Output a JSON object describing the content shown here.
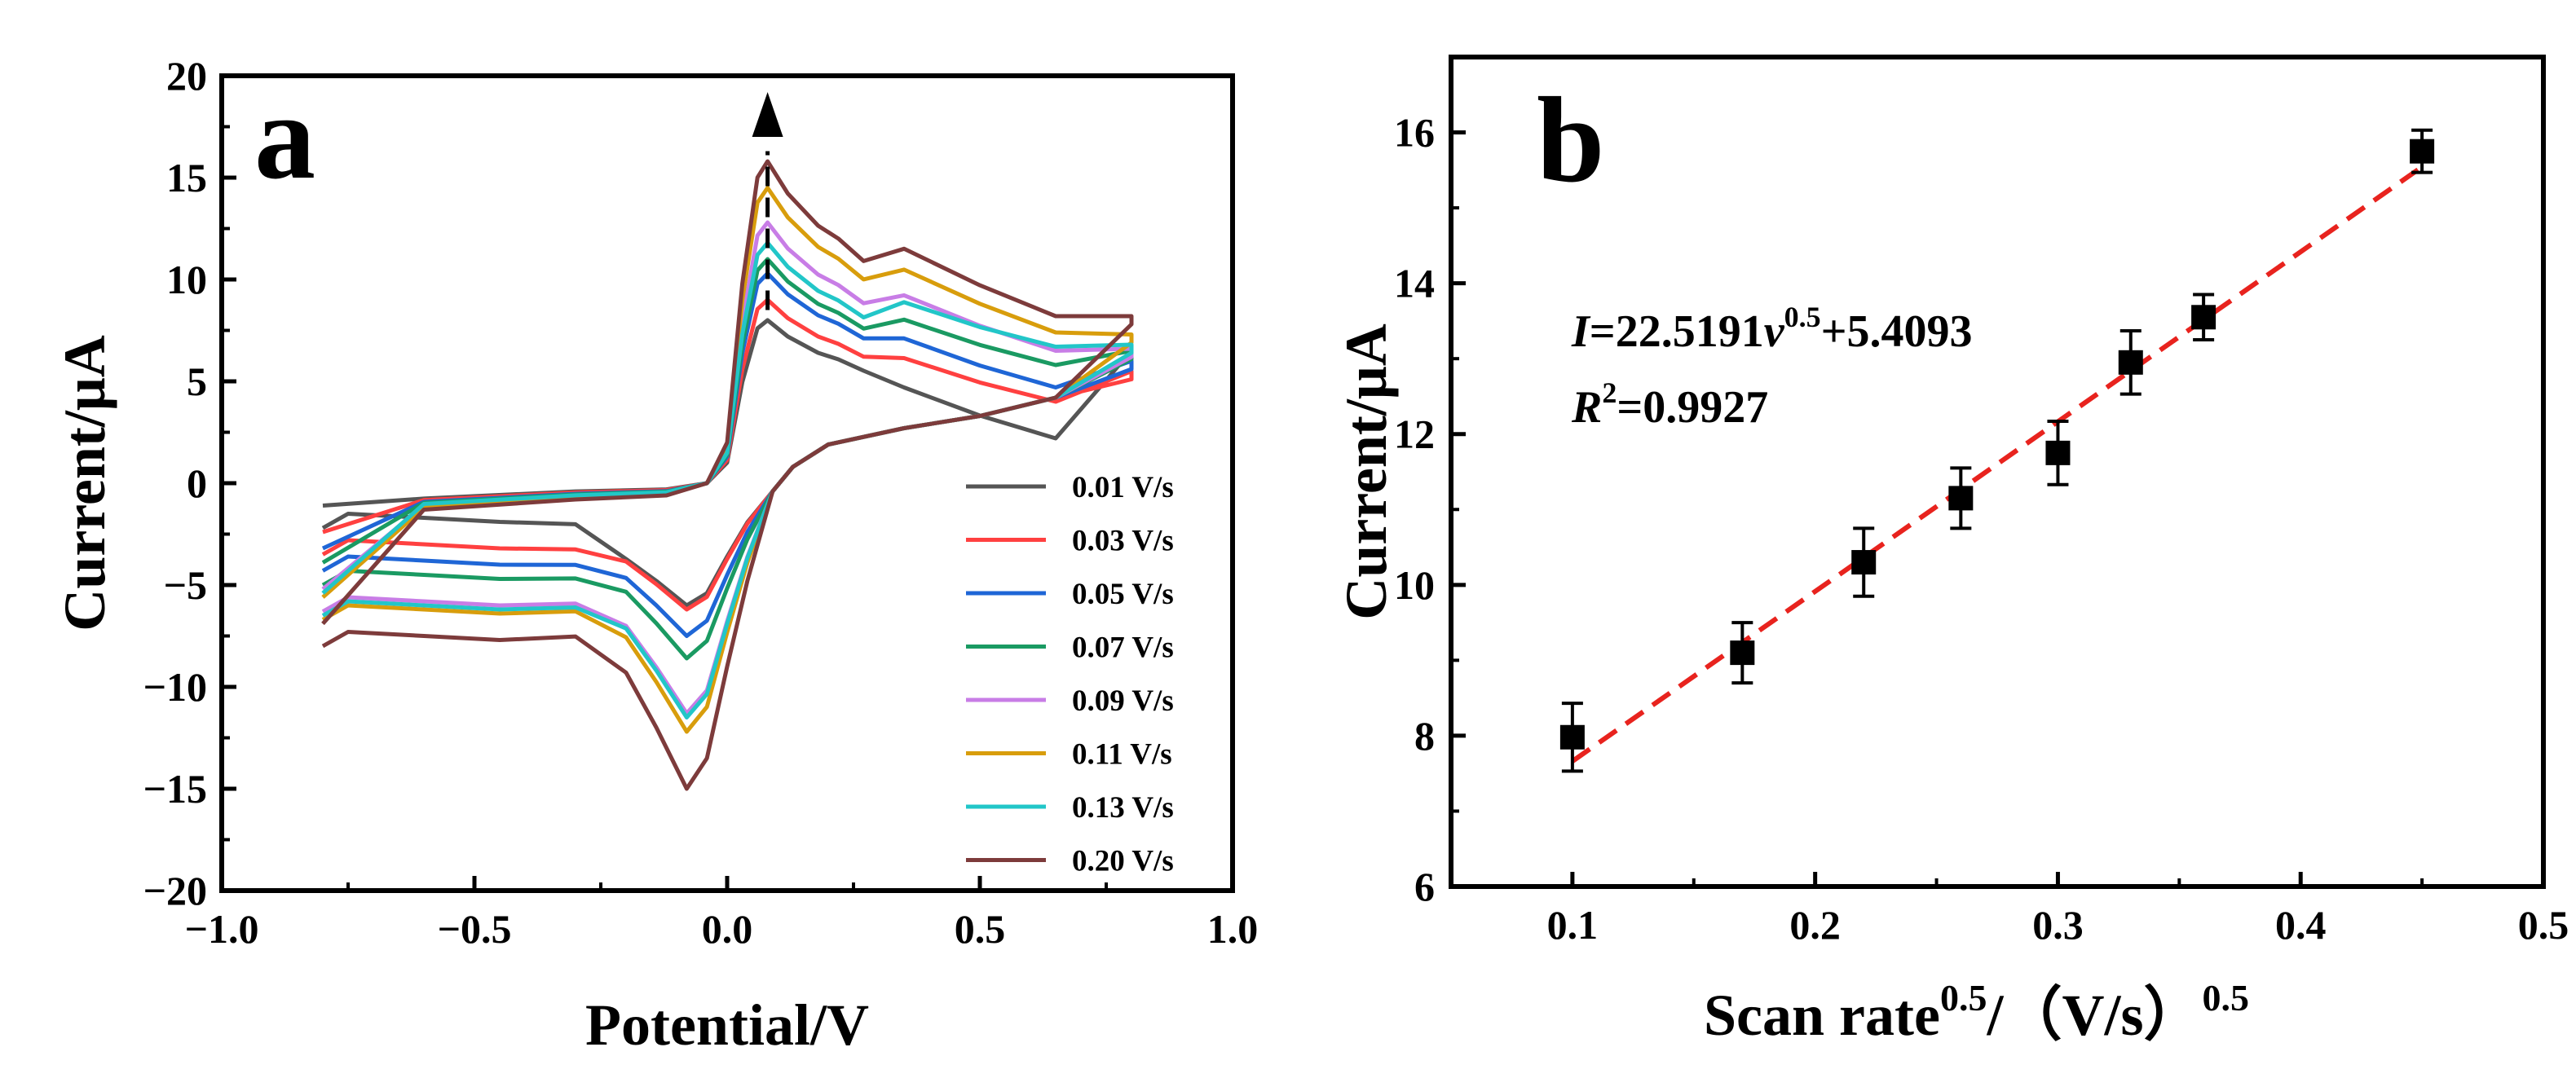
{
  "chart_data": [
    {
      "panel": "a",
      "type": "line",
      "title": "",
      "xlabel": "Potential/V",
      "ylabel": "Current/μA",
      "xlim": [
        -1.0,
        1.0
      ],
      "ylim": [
        -20,
        20
      ],
      "x_ticks": [
        "−1.0",
        "−0.5",
        "0.0",
        "0.5",
        "1.0"
      ],
      "y_ticks": [
        "20",
        "15",
        "10",
        "5",
        "0",
        "−5",
        "−10",
        "−15",
        "−20"
      ],
      "legend_position": "bottom-right",
      "arrow_x": 0.08,
      "series": [
        {
          "name": "0.01 V/s",
          "color": "#555555",
          "ip_a": 8.0,
          "ip_c": -6.0,
          "base_a": 2.0,
          "base_c": -1.7,
          "end_a": 6.5
        },
        {
          "name": "0.03 V/s",
          "color": "#ff4040",
          "ip_a": 9.0,
          "ip_c": -6.2,
          "base_a": 3.8,
          "base_c": -3.0,
          "end_a": 5.5
        },
        {
          "name": "0.05 V/s",
          "color": "#1f66d6",
          "ip_a": 10.3,
          "ip_c": -7.5,
          "base_a": 4.5,
          "base_c": -3.8,
          "end_a": 6.0
        },
        {
          "name": "0.07 V/s",
          "color": "#1a9a62",
          "ip_a": 11.0,
          "ip_c": -8.6,
          "base_a": 5.6,
          "base_c": -4.5,
          "end_a": 6.5
        },
        {
          "name": "0.09 V/s",
          "color": "#c87de6",
          "ip_a": 12.8,
          "ip_c": -11.3,
          "base_a": 6.3,
          "base_c": -5.8,
          "end_a": 6.6
        },
        {
          "name": "0.11 V/s",
          "color": "#d89d0c",
          "ip_a": 14.5,
          "ip_c": -12.2,
          "base_a": 7.2,
          "base_c": -6.2,
          "end_a": 7.3
        },
        {
          "name": "0.13 V/s",
          "color": "#22c6c8",
          "ip_a": 11.8,
          "ip_c": -11.5,
          "base_a": 6.5,
          "base_c": -6.0,
          "end_a": 6.8
        },
        {
          "name": "0.20 V/s",
          "color": "#7d3b3b",
          "ip_a": 15.8,
          "ip_c": -15.0,
          "base_a": 8.0,
          "base_c": -7.5,
          "end_a": 8.2
        }
      ]
    },
    {
      "panel": "b",
      "type": "scatter",
      "title": "",
      "xlabel": "Scan rate",
      "xlabel_sup": "0.5",
      "xlabel_rest": "/（V/s）",
      "xlabel_sup2": "0.5",
      "ylabel": "Current/μA",
      "xlim": [
        0.05,
        0.5
      ],
      "ylim": [
        6,
        17
      ],
      "x_ticks": [
        "0.1",
        "0.2",
        "0.3",
        "0.4",
        "0.5"
      ],
      "y_ticks": [
        "6",
        "8",
        "10",
        "12",
        "14",
        "16"
      ],
      "x": [
        0.1,
        0.17,
        0.22,
        0.26,
        0.3,
        0.33,
        0.36,
        0.45
      ],
      "y": [
        7.98,
        9.1,
        10.3,
        11.15,
        11.75,
        12.95,
        13.55,
        15.75
      ],
      "error": [
        0.45,
        0.4,
        0.45,
        0.4,
        0.42,
        0.42,
        0.3,
        0.28
      ],
      "fit": {
        "slope": 22.5191,
        "intercept": 5.4093,
        "x_range": [
          0.1,
          0.45
        ],
        "color": "#e8231e"
      },
      "equation": {
        "I": "I",
        "main": "=22.5191",
        "v": "ν",
        "sup": "0.5",
        "rest": "+5.4093"
      },
      "r2": {
        "R": "R",
        "sup": "2",
        "rest": "=0.9927"
      }
    }
  ],
  "panel_labels": {
    "a": "a",
    "b": "b"
  }
}
